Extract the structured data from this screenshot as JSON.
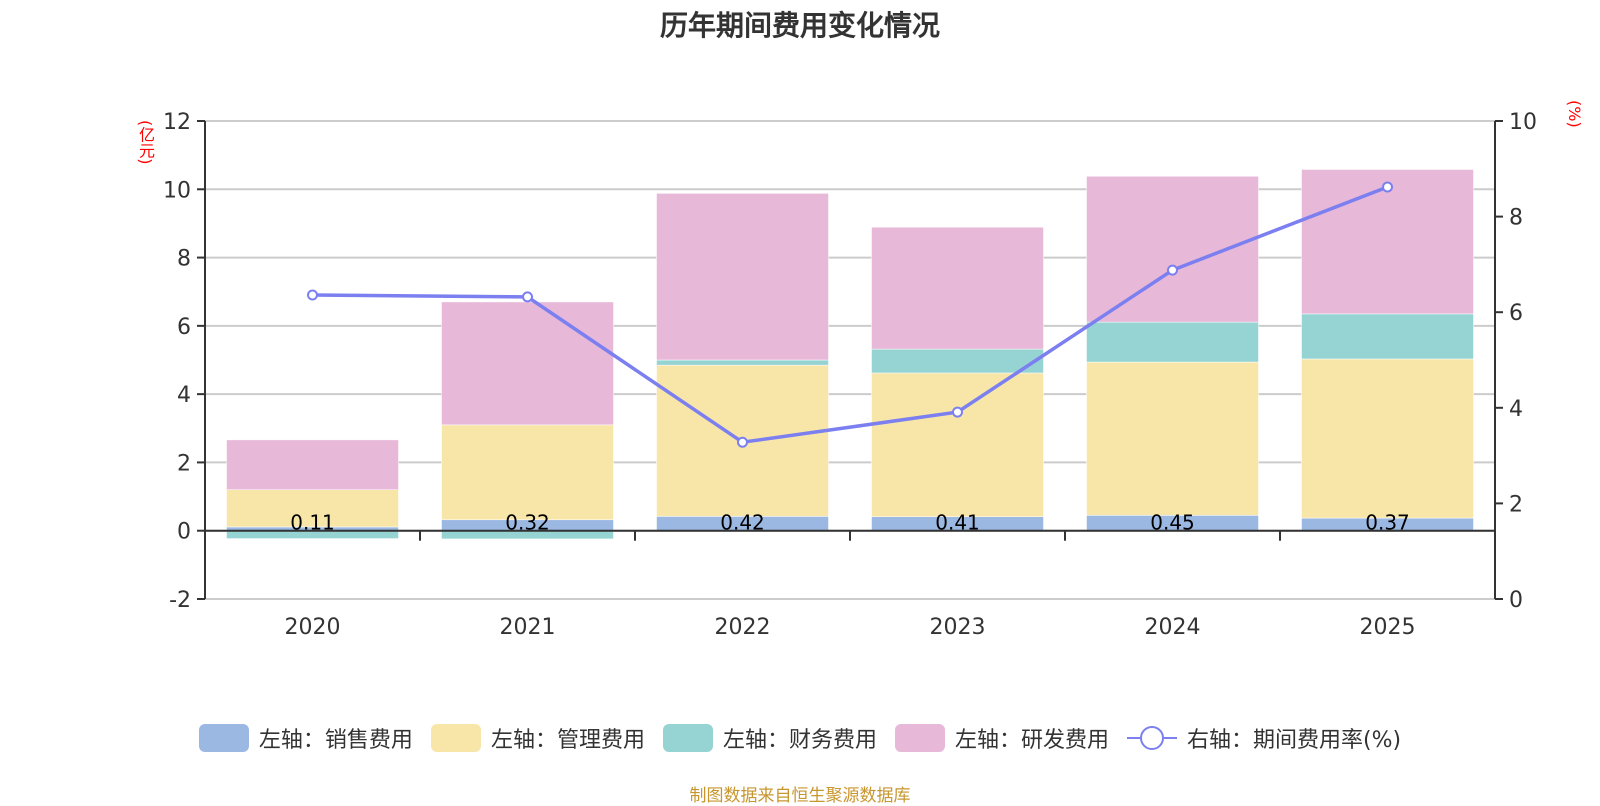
{
  "chart_data": {
    "type": "bar",
    "title": "历年期间费用变化情况",
    "categories": [
      "2020",
      "2021",
      "2022",
      "2023",
      "2024",
      "2025"
    ],
    "left_axis": {
      "unit_label": "(亿元)",
      "ylim": [
        -2,
        12
      ],
      "ticks": [
        -2,
        0,
        2,
        4,
        6,
        8,
        10,
        12
      ]
    },
    "right_axis": {
      "unit_label": "(%)",
      "ylim": [
        0,
        10
      ],
      "ticks": [
        0,
        2,
        4,
        6,
        8,
        10
      ]
    },
    "grid": true,
    "stacked": true,
    "series": [
      {
        "name": "左轴：销售费用",
        "type": "bar",
        "axis": "left",
        "color": "#9bb8e3",
        "values": [
          0.11,
          0.32,
          0.42,
          0.41,
          0.45,
          0.37
        ],
        "show_labels": true
      },
      {
        "name": "左轴：管理费用",
        "type": "bar",
        "axis": "left",
        "color": "#f8e6a9",
        "values": [
          1.09,
          2.78,
          4.43,
          4.21,
          4.49,
          4.66
        ]
      },
      {
        "name": "左轴：财务费用",
        "type": "bar",
        "axis": "left",
        "color": "#96d3d3",
        "values": [
          -0.23,
          -0.24,
          0.15,
          0.7,
          1.17,
          1.32
        ]
      },
      {
        "name": "左轴：研发费用",
        "type": "bar",
        "axis": "left",
        "color": "#e7b8d8",
        "values": [
          1.46,
          3.6,
          4.88,
          3.57,
          4.27,
          4.23
        ]
      },
      {
        "name": "右轴：期间费用率(%)",
        "type": "line",
        "axis": "right",
        "color": "#7b7ff0",
        "values": [
          6.36,
          6.32,
          3.28,
          3.91,
          6.88,
          8.62
        ]
      }
    ],
    "legend_position": "bottom",
    "source": "制图数据来自恒生聚源数据库"
  }
}
